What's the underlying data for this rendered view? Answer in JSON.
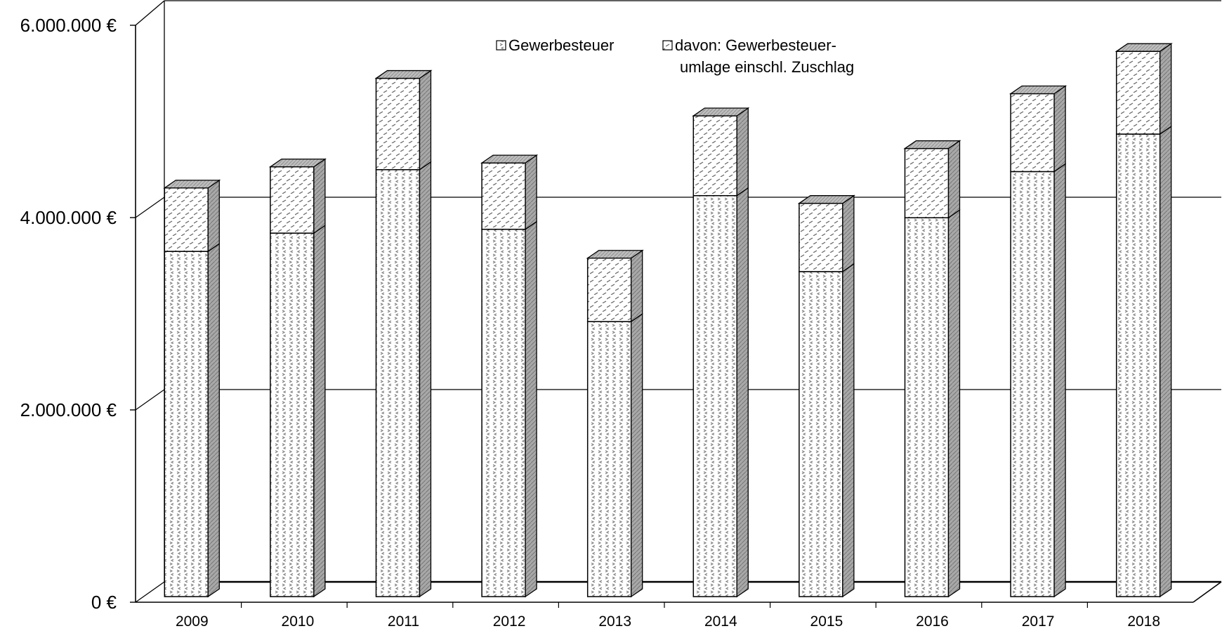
{
  "chart_data": {
    "type": "bar",
    "stacked": true,
    "style": "3d",
    "categories": [
      "2009",
      "2010",
      "2011",
      "2012",
      "2013",
      "2014",
      "2015",
      "2016",
      "2017",
      "2018"
    ],
    "series": [
      {
        "name": "davon:  Gewerbesteuer-umlage einschl. Zuschlag",
        "legend_lines": [
          "davon:  Gewerbesteuer-",
          "umlage einschl. Zuschlag"
        ],
        "values": [
          3590000,
          3780000,
          4440000,
          3820000,
          2860000,
          4170000,
          3380000,
          3940000,
          4420000,
          4810000
        ]
      },
      {
        "name": "Gewerbesteuer",
        "legend_lines": [
          "Gewerbesteuer"
        ],
        "values": [
          660000,
          690000,
          950000,
          690000,
          660000,
          830000,
          710000,
          720000,
          810000,
          860000
        ]
      }
    ],
    "ylim": [
      0,
      6000000
    ],
    "yticks": [
      {
        "value": 0,
        "label": "0 €"
      },
      {
        "value": 2000000,
        "label": "2.000.000 €"
      },
      {
        "value": 4000000,
        "label": "4.000.000 €"
      },
      {
        "value": 6000000,
        "label": "6.000.000 €"
      }
    ],
    "grid": true,
    "legend_position": "top-center"
  }
}
